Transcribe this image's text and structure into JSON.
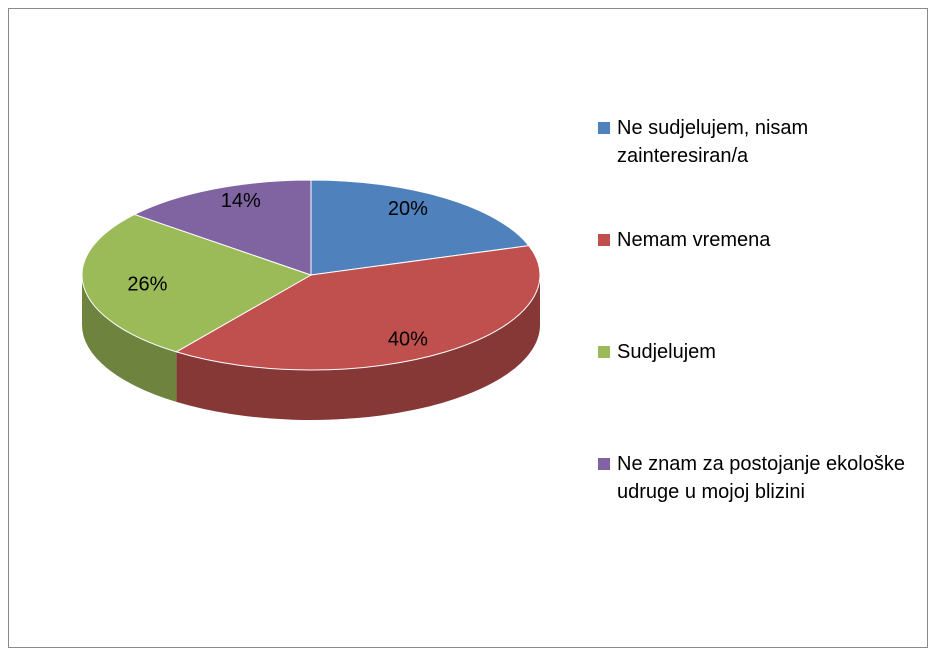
{
  "chart_data": {
    "type": "pie",
    "categories": [
      "Ne sudjelujem, nisam zainteresiran/a",
      "Nemam vremena",
      "Sudjelujem",
      "Ne znam za postojanje ekološke udruge u mojoj blizini"
    ],
    "values": [
      20,
      40,
      26,
      14
    ],
    "value_labels": [
      "20%",
      "40%",
      "26%",
      "14%"
    ],
    "colors": [
      "#4f81bd",
      "#c0504d",
      "#9bbb59",
      "#8064a2"
    ],
    "legend": "right"
  }
}
